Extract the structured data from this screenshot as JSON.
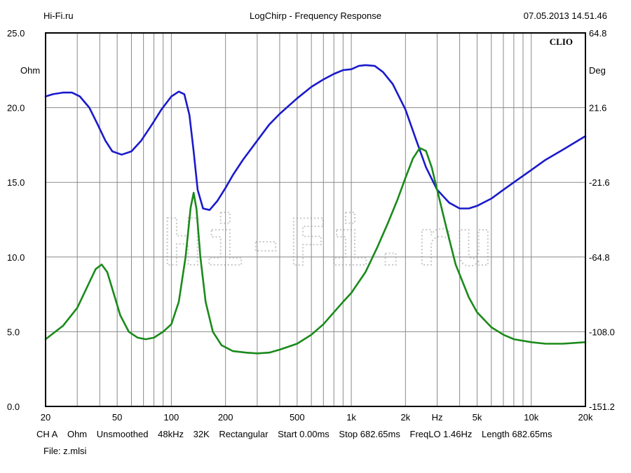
{
  "header": {
    "left": "Hi-Fi.ru",
    "center": "LogChirp - Frequency Response",
    "right": "07.05.2013 14.51.46"
  },
  "watermark": "Hi-Fi.ru",
  "chart_data": {
    "type": "line",
    "title": "LogChirp - Frequency Response",
    "x_scale": "log",
    "xlim": [
      20,
      20000
    ],
    "x_ticks": [
      {
        "value": 20,
        "label": "20"
      },
      {
        "value": 50,
        "label": "50"
      },
      {
        "value": 100,
        "label": "100"
      },
      {
        "value": 200,
        "label": "200"
      },
      {
        "value": 500,
        "label": "500"
      },
      {
        "value": 1000,
        "label": "1k"
      },
      {
        "value": 2000,
        "label": "2k"
      },
      {
        "value": 5000,
        "label": "5k"
      },
      {
        "value": 10000,
        "label": "10k"
      },
      {
        "value": 20000,
        "label": "20k"
      }
    ],
    "x_unit_label": "Hz",
    "x_unit_position_hz": 3000,
    "y_left": {
      "label": "Ohm",
      "lim": [
        0,
        25
      ],
      "ticks": [
        {
          "value": 0,
          "label": "0.0"
        },
        {
          "value": 5,
          "label": "5.0"
        },
        {
          "value": 10,
          "label": "10.0"
        },
        {
          "value": 15,
          "label": "15.0"
        },
        {
          "value": 20,
          "label": "20.0"
        },
        {
          "value": 25,
          "label": "25.0"
        }
      ]
    },
    "y_right": {
      "label": "Deg",
      "lim": [
        -151.2,
        64.8
      ],
      "ticks": [
        {
          "value": 64.8,
          "label": "64.8"
        },
        {
          "value": 21.6,
          "label": "21.6"
        },
        {
          "value": -21.6,
          "label": "-21.6"
        },
        {
          "value": -64.8,
          "label": "-64.8"
        },
        {
          "value": -108.0,
          "label": "-108.0"
        },
        {
          "value": -151.2,
          "label": "-151.2"
        }
      ]
    },
    "grid": true,
    "corner_label": "CLIO",
    "series": [
      {
        "axis": "right",
        "color": "#1a1acc",
        "points": [
          [
            20,
            28.1
          ],
          [
            22,
            29.4
          ],
          [
            25,
            30.3
          ],
          [
            28,
            30.3
          ],
          [
            31,
            28.1
          ],
          [
            35,
            21.6
          ],
          [
            39,
            11.8
          ],
          [
            43,
            2.5
          ],
          [
            47,
            -3.7
          ],
          [
            53,
            -5.6
          ],
          [
            60,
            -3.7
          ],
          [
            68,
            2.5
          ],
          [
            78,
            11.8
          ],
          [
            88,
            20.5
          ],
          [
            100,
            28.1
          ],
          [
            110,
            30.9
          ],
          [
            118,
            29.4
          ],
          [
            126,
            17.3
          ],
          [
            133,
            -3.7
          ],
          [
            140,
            -25.9
          ],
          [
            150,
            -36.7
          ],
          [
            163,
            -37.6
          ],
          [
            180,
            -32.4
          ],
          [
            200,
            -24.8
          ],
          [
            220,
            -17.3
          ],
          [
            250,
            -8.6
          ],
          [
            300,
            2.5
          ],
          [
            350,
            11.8
          ],
          [
            400,
            18.0
          ],
          [
            500,
            27.0
          ],
          [
            600,
            33.6
          ],
          [
            700,
            37.9
          ],
          [
            800,
            41.1
          ],
          [
            900,
            43.3
          ],
          [
            1000,
            43.8
          ],
          [
            1100,
            45.7
          ],
          [
            1200,
            46.2
          ],
          [
            1350,
            45.7
          ],
          [
            1500,
            42.2
          ],
          [
            1700,
            35.2
          ],
          [
            2000,
            20.5
          ],
          [
            2300,
            2.5
          ],
          [
            2600,
            -12.9
          ],
          [
            3000,
            -25.9
          ],
          [
            3500,
            -33.4
          ],
          [
            4000,
            -36.7
          ],
          [
            4500,
            -36.7
          ],
          [
            5000,
            -35.2
          ],
          [
            6000,
            -31.0
          ],
          [
            7000,
            -25.9
          ],
          [
            8000,
            -21.6
          ],
          [
            10000,
            -14.5
          ],
          [
            12000,
            -8.6
          ],
          [
            15000,
            -2.7
          ],
          [
            20000,
            5.1
          ]
        ]
      },
      {
        "axis": "left",
        "color": "#1a8a1a",
        "points": [
          [
            20,
            4.5
          ],
          [
            25,
            5.4
          ],
          [
            30,
            6.6
          ],
          [
            35,
            8.3
          ],
          [
            38,
            9.2
          ],
          [
            41,
            9.5
          ],
          [
            44,
            9.0
          ],
          [
            48,
            7.5
          ],
          [
            52,
            6.1
          ],
          [
            58,
            5.0
          ],
          [
            65,
            4.6
          ],
          [
            72,
            4.5
          ],
          [
            80,
            4.6
          ],
          [
            90,
            5.0
          ],
          [
            100,
            5.5
          ],
          [
            110,
            7.0
          ],
          [
            120,
            10.0
          ],
          [
            128,
            13.3
          ],
          [
            133,
            14.3
          ],
          [
            138,
            13.2
          ],
          [
            145,
            10.0
          ],
          [
            155,
            7.0
          ],
          [
            170,
            5.0
          ],
          [
            190,
            4.1
          ],
          [
            220,
            3.7
          ],
          [
            260,
            3.6
          ],
          [
            300,
            3.55
          ],
          [
            350,
            3.6
          ],
          [
            400,
            3.8
          ],
          [
            500,
            4.2
          ],
          [
            600,
            4.8
          ],
          [
            700,
            5.5
          ],
          [
            800,
            6.3
          ],
          [
            900,
            7.0
          ],
          [
            1000,
            7.6
          ],
          [
            1200,
            9.0
          ],
          [
            1400,
            10.7
          ],
          [
            1600,
            12.3
          ],
          [
            1800,
            13.8
          ],
          [
            2000,
            15.3
          ],
          [
            2200,
            16.6
          ],
          [
            2400,
            17.3
          ],
          [
            2600,
            17.1
          ],
          [
            2800,
            16.0
          ],
          [
            3000,
            14.5
          ],
          [
            3400,
            11.8
          ],
          [
            3800,
            9.5
          ],
          [
            4500,
            7.3
          ],
          [
            5000,
            6.3
          ],
          [
            6000,
            5.3
          ],
          [
            7000,
            4.8
          ],
          [
            8000,
            4.5
          ],
          [
            10000,
            4.3
          ],
          [
            12000,
            4.2
          ],
          [
            15000,
            4.2
          ],
          [
            20000,
            4.3
          ]
        ]
      }
    ]
  },
  "footer": {
    "channel": "CH A",
    "unit": "Ohm",
    "smoothing": "Unsmoothed",
    "sample_rate": "48kHz",
    "fft_size": "32K",
    "window": "Rectangular",
    "start": "Start 0.00ms",
    "stop": "Stop 682.65ms",
    "freq_lo": "FreqLO 1.46Hz",
    "length": "Length 682.65ms",
    "file": "File: z.mlsi"
  }
}
